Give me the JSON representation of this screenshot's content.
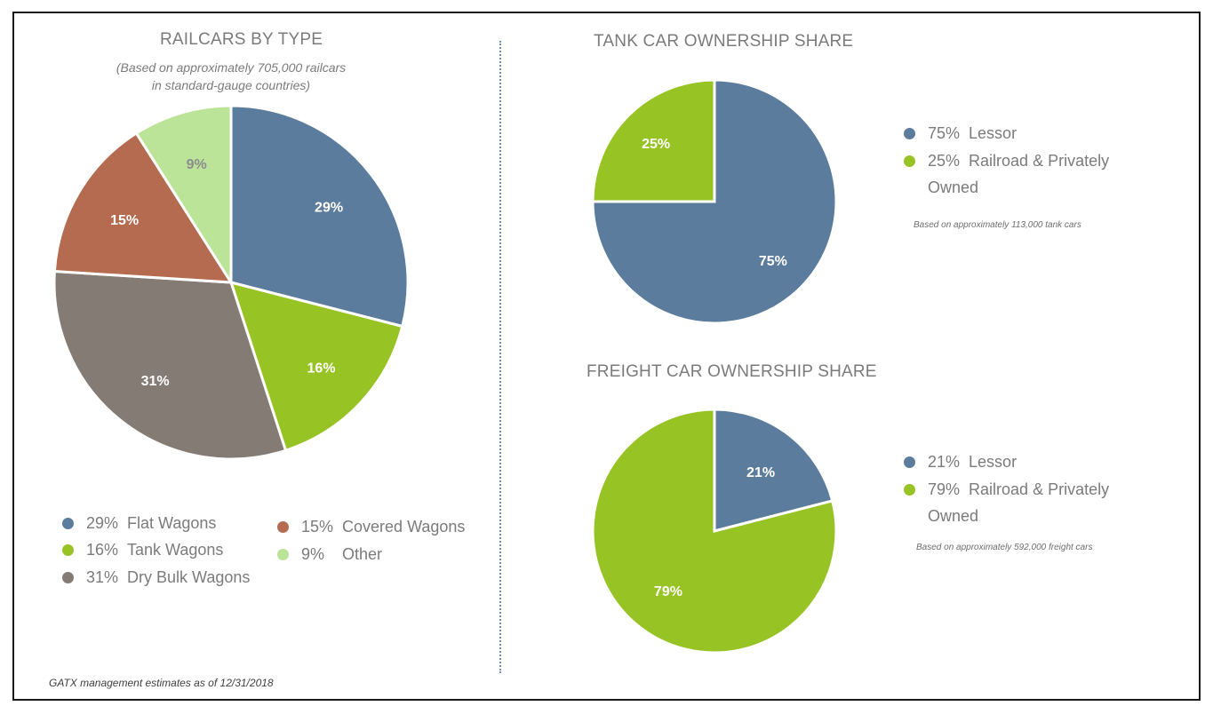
{
  "footnote": "GATX management estimates as of 12/31/2018",
  "colors": {
    "blue": "#5b7c9c",
    "green": "#97c424",
    "brown": "#b46b4f",
    "gray": "#857b75",
    "light_green": "#bce499"
  },
  "chart_data": [
    {
      "type": "pie",
      "title": "RAILCARS BY TYPE",
      "subtitle_line1": "(Based on approximately 705,000 railcars",
      "subtitle_line2": "in standard-gauge countries)",
      "categories": [
        "Flat Wagons",
        "Tank Wagons",
        "Dry Bulk Wagons",
        "Covered Wagons",
        "Other"
      ],
      "values": [
        29,
        16,
        31,
        15,
        9
      ],
      "labels": [
        "29%",
        "16%",
        "31%",
        "15%",
        "9%"
      ],
      "colors": [
        "#5b7c9c",
        "#97c424",
        "#857b75",
        "#b46b4f",
        "#bce499"
      ],
      "legend": [
        {
          "pct": "29%",
          "label": "Flat Wagons",
          "color": "#5b7c9c"
        },
        {
          "pct": "16%",
          "label": "Tank Wagons",
          "color": "#97c424"
        },
        {
          "pct": "31%",
          "label": "Dry Bulk Wagons",
          "color": "#857b75"
        },
        {
          "pct": "15%",
          "label": "Covered Wagons",
          "color": "#b46b4f"
        },
        {
          "pct": "9%",
          "label": "Other",
          "color": "#bce499"
        }
      ],
      "legend_position": "bottom"
    },
    {
      "type": "pie",
      "title": "TANK CAR OWNERSHIP SHARE",
      "categories": [
        "Lessor",
        "Railroad & Privately Owned"
      ],
      "values": [
        75,
        25
      ],
      "labels": [
        "75%",
        "25%"
      ],
      "colors": [
        "#5b7c9c",
        "#97c424"
      ],
      "legend": [
        {
          "pct": "75%",
          "label": "Lessor",
          "color": "#5b7c9c"
        },
        {
          "pct": "25%",
          "label": "Railroad & Privately",
          "label_cont": "Owned",
          "color": "#97c424"
        }
      ],
      "legend_position": "right",
      "note": "Based on approximately 113,000 tank cars"
    },
    {
      "type": "pie",
      "title": "FREIGHT CAR OWNERSHIP SHARE",
      "categories": [
        "Lessor",
        "Railroad & Privately Owned"
      ],
      "values": [
        21,
        79
      ],
      "labels": [
        "21%",
        "79%"
      ],
      "colors": [
        "#5b7c9c",
        "#97c424"
      ],
      "legend": [
        {
          "pct": "21%",
          "label": "Lessor",
          "color": "#5b7c9c"
        },
        {
          "pct": "79%",
          "label": "Railroad & Privately",
          "label_cont": "Owned",
          "color": "#97c424"
        }
      ],
      "legend_position": "right",
      "note": "Based on approximately 592,000 freight cars"
    }
  ]
}
